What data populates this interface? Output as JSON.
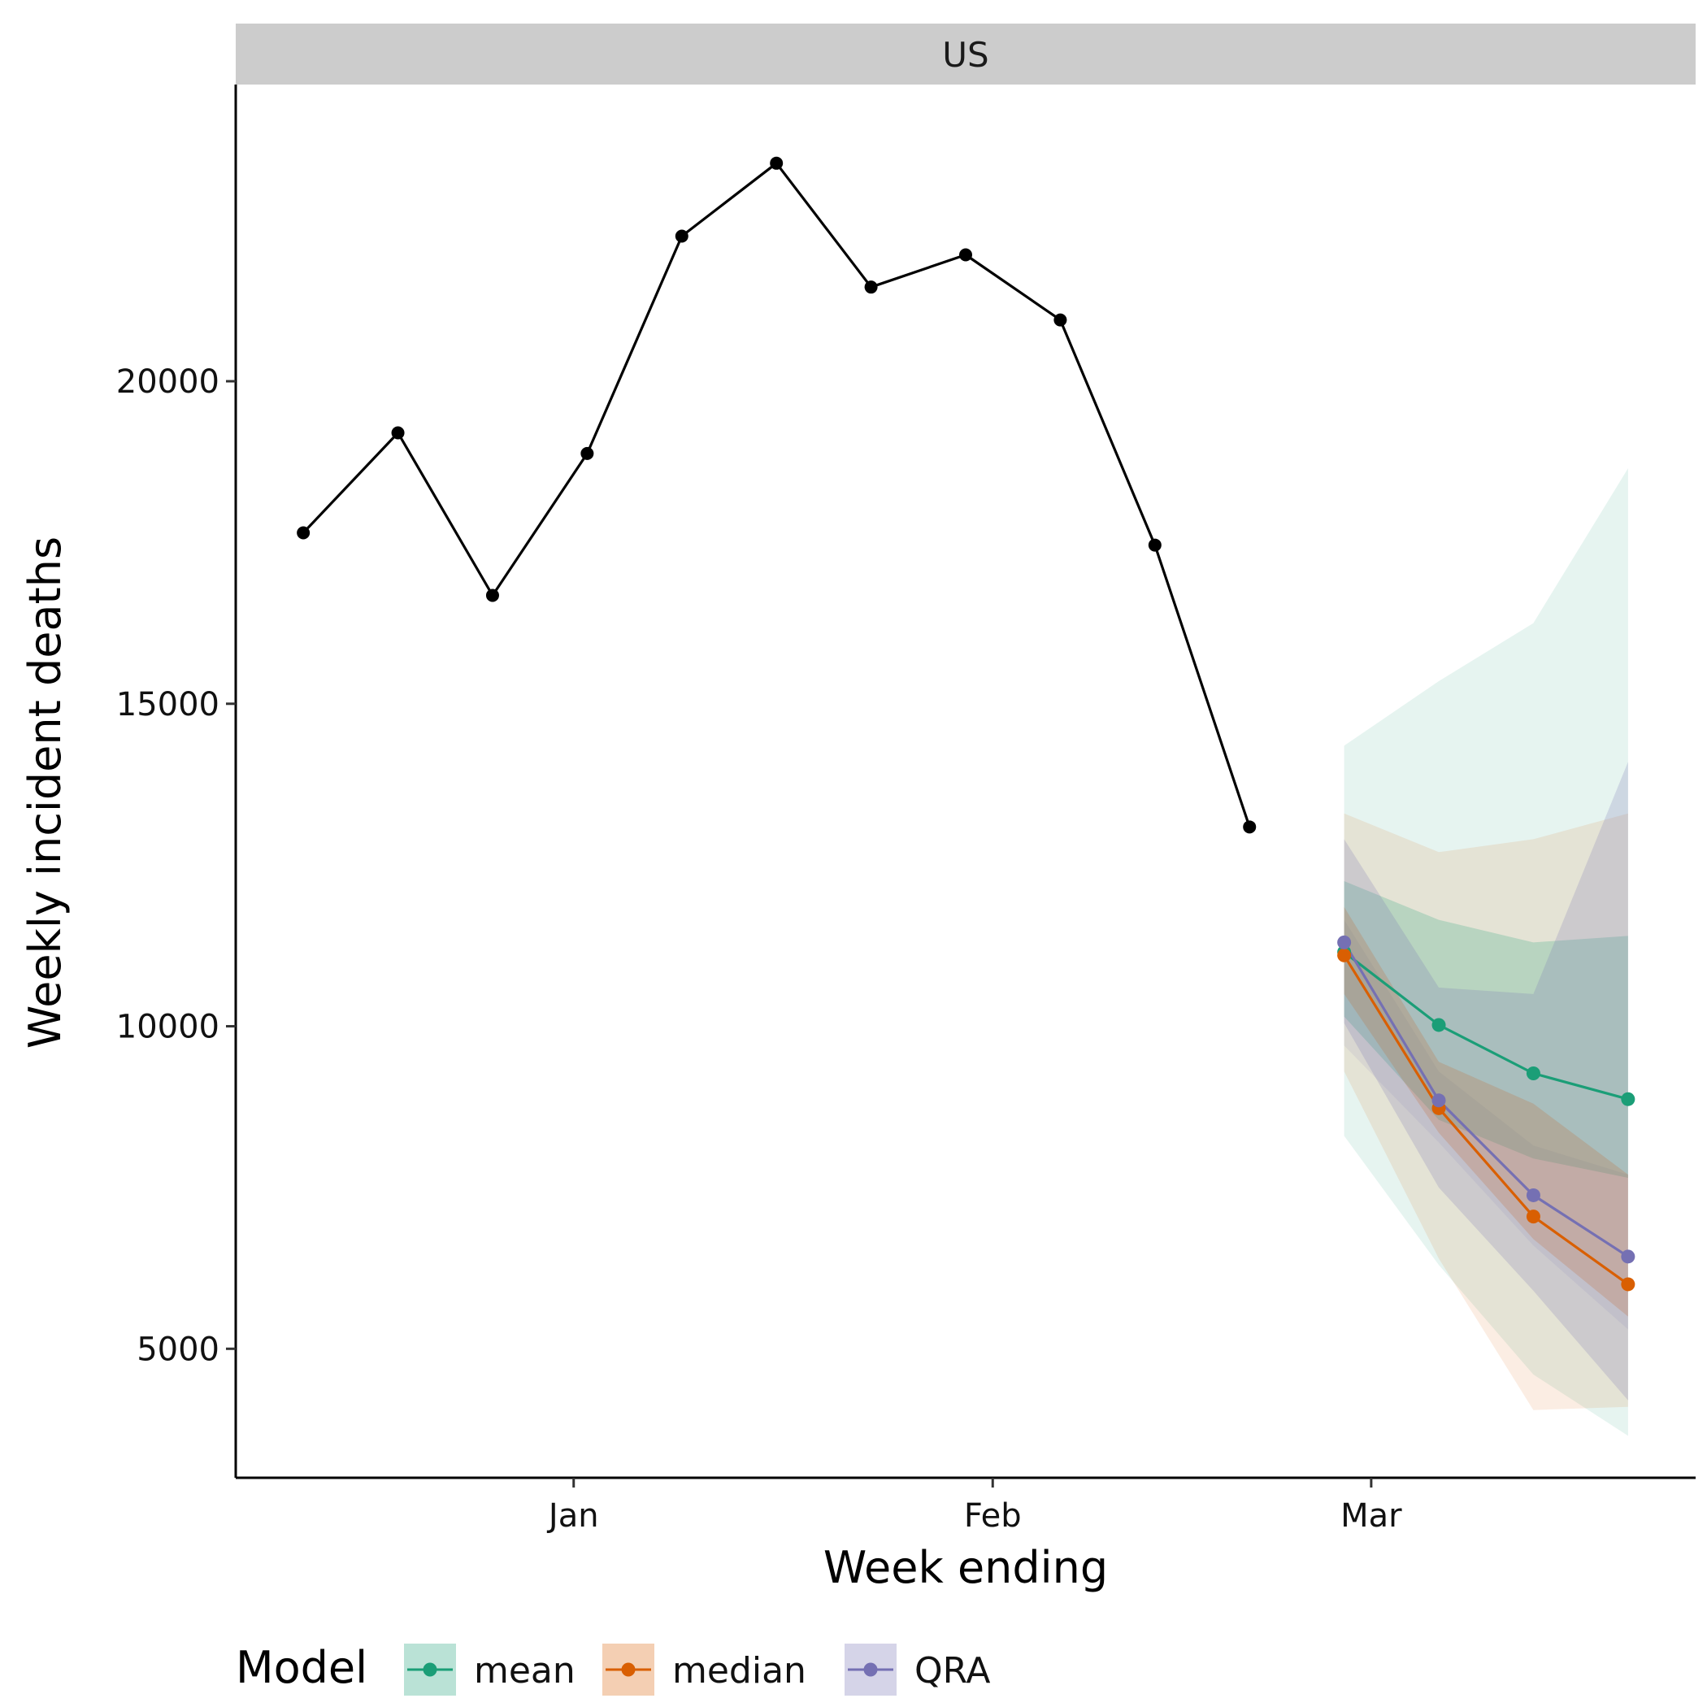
{
  "chart_data": {
    "type": "line",
    "panel": "US",
    "xlabel": "Week ending",
    "ylabel": "Weekly incident deaths",
    "x_ticks": [
      {
        "label": "Jan",
        "date": "2021-01-01"
      },
      {
        "label": "Feb",
        "date": "2021-02-01"
      },
      {
        "label": "Mar",
        "date": "2021-03-01"
      }
    ],
    "y_ticks": [
      5000,
      10000,
      15000,
      20000
    ],
    "xlim": [
      "2020-12-07",
      "2021-03-25"
    ],
    "ylim": [
      3000,
      24600
    ],
    "grid": false,
    "legend_position": "bottom",
    "legend_title": "Model",
    "observed": {
      "color": "#000000",
      "points": [
        {
          "x": "2020-12-12",
          "y": 17650
        },
        {
          "x": "2020-12-19",
          "y": 19200
        },
        {
          "x": "2020-12-26",
          "y": 16680
        },
        {
          "x": "2021-01-02",
          "y": 18880
        },
        {
          "x": "2021-01-09",
          "y": 22250
        },
        {
          "x": "2021-01-16",
          "y": 23380
        },
        {
          "x": "2021-01-23",
          "y": 21460
        },
        {
          "x": "2021-01-30",
          "y": 21960
        },
        {
          "x": "2021-02-06",
          "y": 20950
        },
        {
          "x": "2021-02-13",
          "y": 17460
        },
        {
          "x": "2021-02-20",
          "y": 13090
        }
      ]
    },
    "series": [
      {
        "name": "mean",
        "color": "#1b9e77",
        "x": [
          "2021-02-27",
          "2021-03-06",
          "2021-03-13",
          "2021-03-20"
        ],
        "values": [
          11150,
          10020,
          9270,
          8870
        ],
        "inner_lower": [
          10150,
          8550,
          7950,
          7650
        ],
        "inner_upper": [
          12250,
          11650,
          11300,
          11400
        ],
        "outer_lower": [
          8300,
          6300,
          4600,
          3650
        ],
        "outer_upper": [
          14350,
          15350,
          16250,
          18650
        ]
      },
      {
        "name": "median",
        "color": "#d95f02",
        "x": [
          "2021-02-27",
          "2021-03-06",
          "2021-03-13",
          "2021-03-20"
        ],
        "values": [
          11100,
          8730,
          7050,
          6000
        ],
        "inner_lower": [
          10500,
          8350,
          6700,
          5500
        ],
        "inner_upper": [
          11850,
          9450,
          8800,
          7700
        ],
        "outer_lower": [
          9300,
          6400,
          4050,
          4100
        ],
        "outer_upper": [
          13300,
          12700,
          12900,
          13300
        ]
      },
      {
        "name": "QRA",
        "color": "#7570b3",
        "x": [
          "2021-02-27",
          "2021-03-06",
          "2021-03-13",
          "2021-03-20"
        ],
        "values": [
          11300,
          8850,
          7380,
          6430
        ],
        "inner_lower": [
          10050,
          7500,
          5900,
          4200
        ],
        "inner_upper": [
          12900,
          10600,
          10500,
          14100
        ],
        "outer_lower": [
          9700,
          8200,
          6600,
          5300
        ],
        "outer_upper": [
          11650,
          9300,
          8150,
          7700
        ]
      }
    ]
  }
}
